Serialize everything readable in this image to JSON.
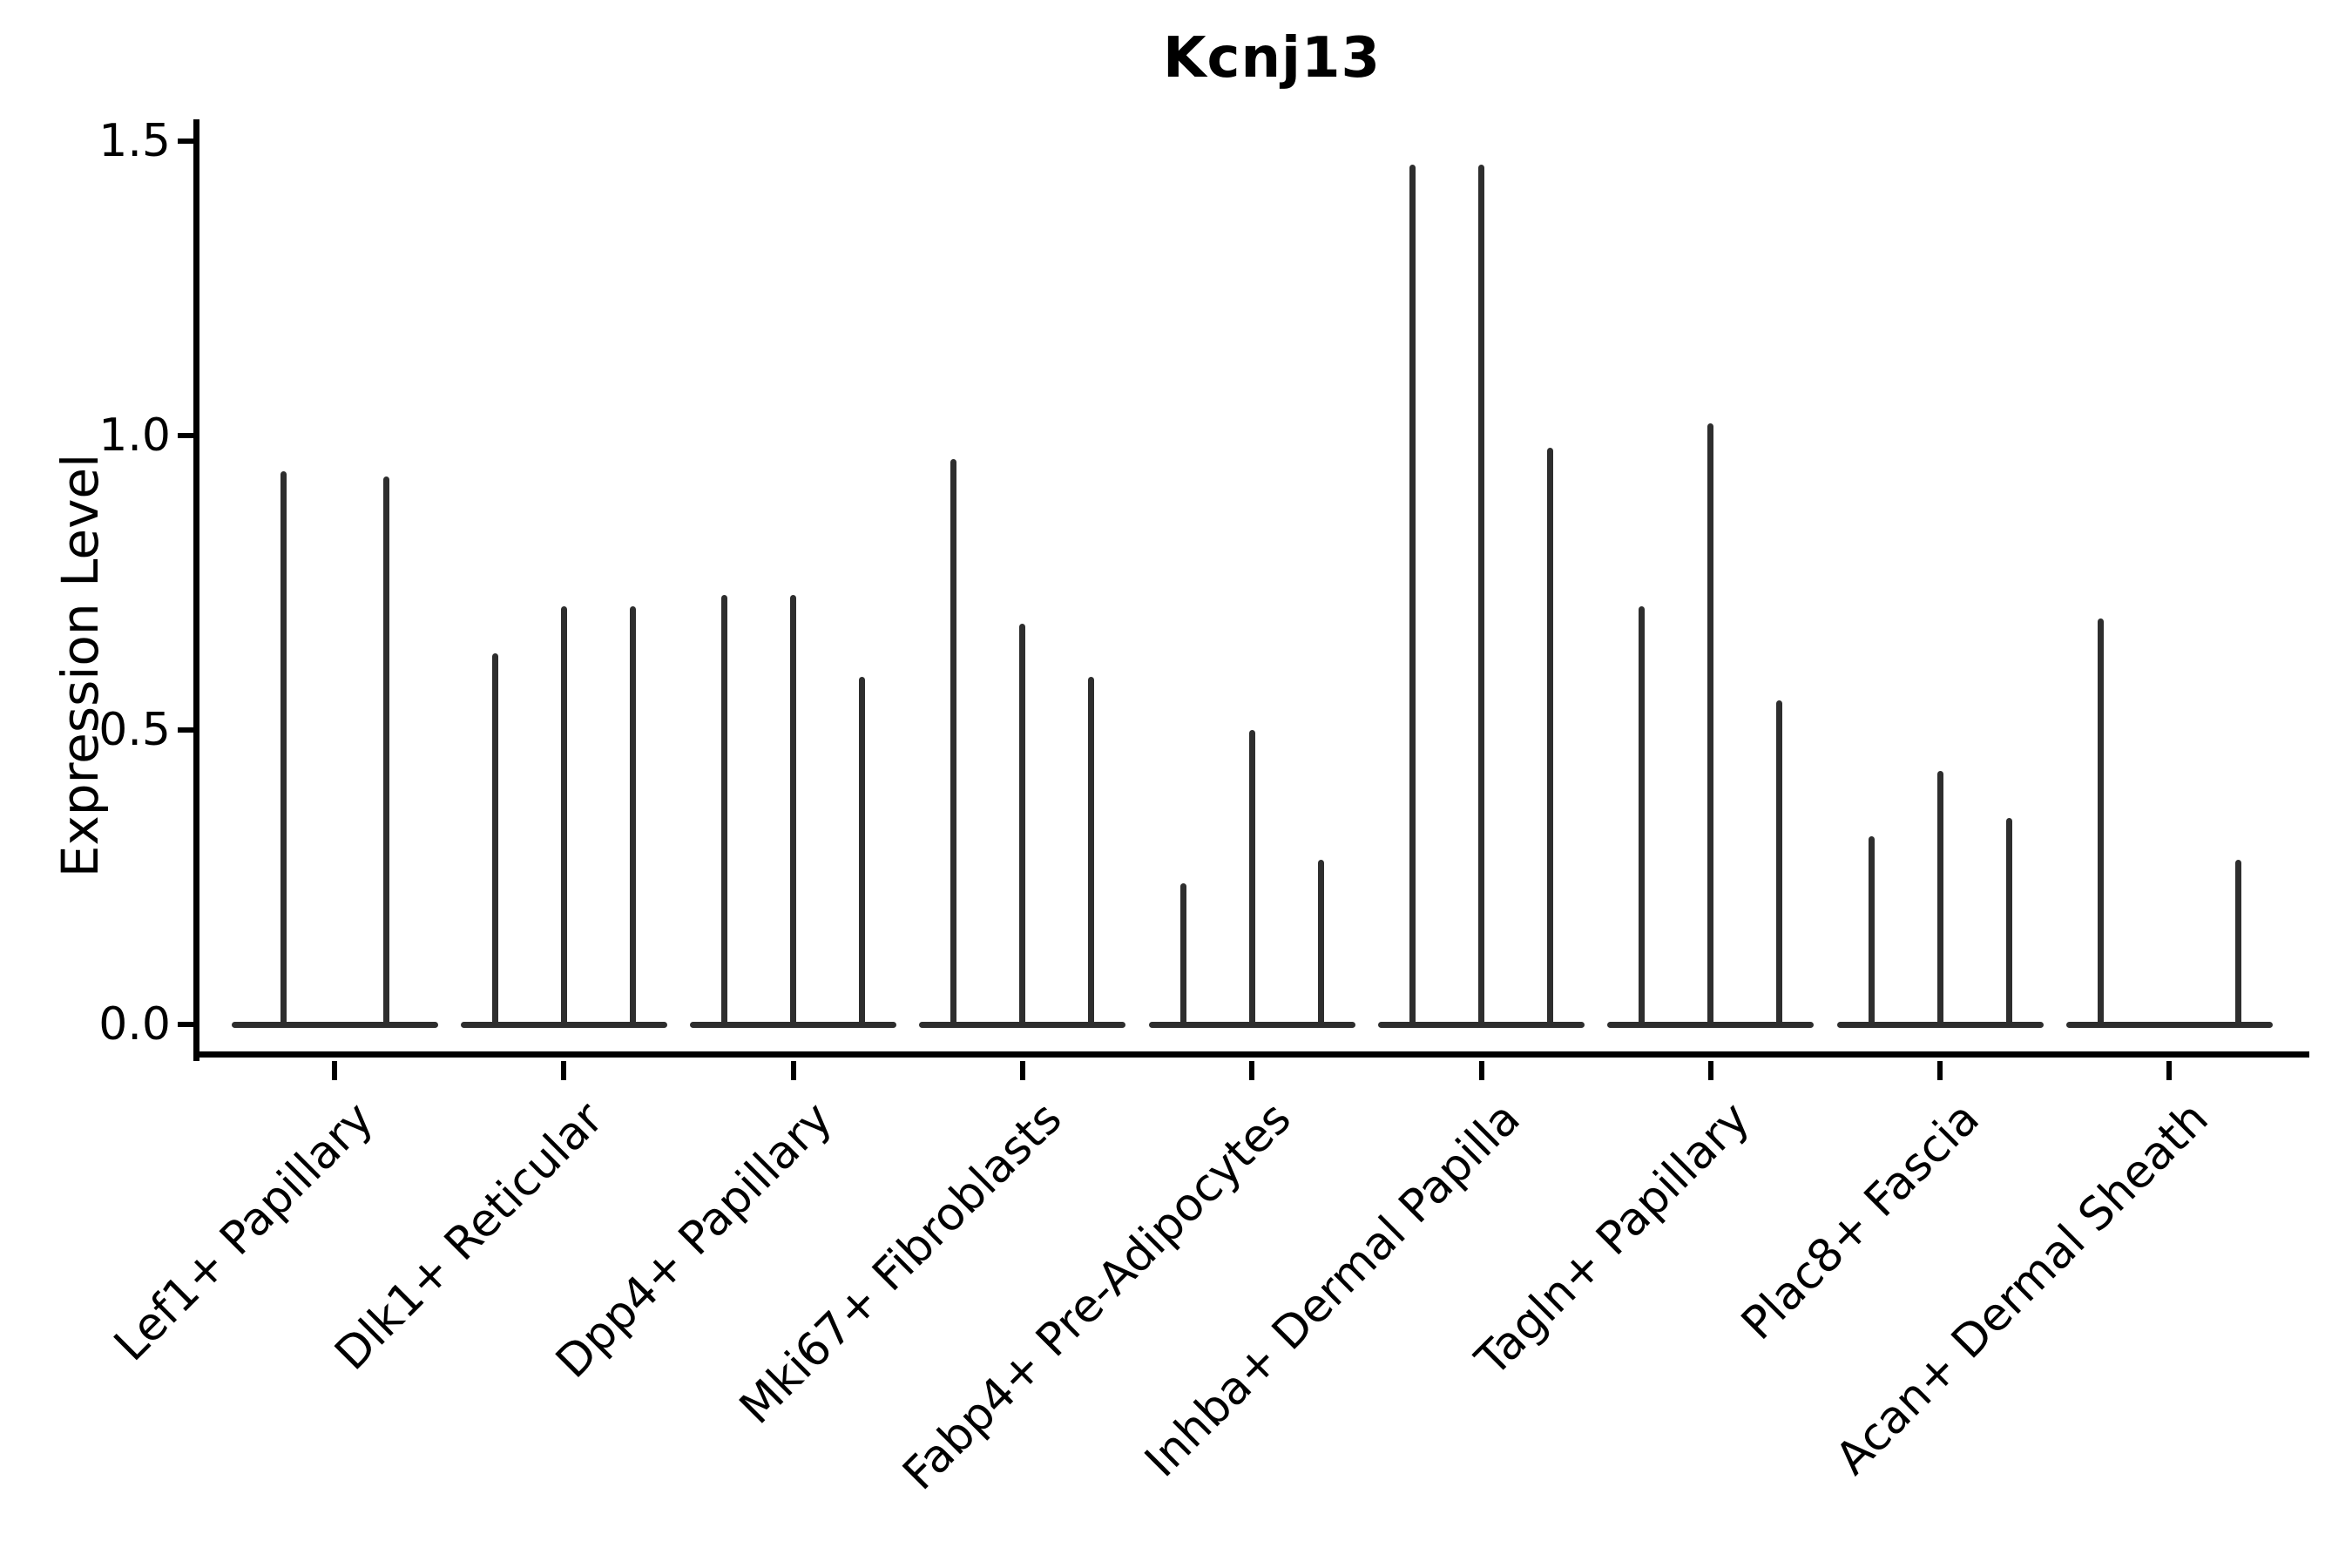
{
  "title": "Kcnj13",
  "axes": {
    "ylabel": "Expression Level",
    "y_tick_labels": [
      "0.0",
      "0.5",
      "1.0",
      "1.5"
    ],
    "y_tick_values": [
      0.0,
      0.5,
      1.0,
      1.5
    ]
  },
  "colors": {
    "violin": "#2e2e2e",
    "axis": "#000000",
    "text": "#000000",
    "background": "#ffffff"
  },
  "chart_data": {
    "type": "violin",
    "title": "Kcnj13",
    "xlabel": "",
    "ylabel": "Expression Level",
    "ylim": [
      -0.06,
      1.53
    ],
    "grid": false,
    "legend": "none",
    "categories": [
      "Lef1+ Papillary",
      "Dlk1+ Reticular",
      "Dpp4+ Papillary",
      "Mki67+ Fibroblasts",
      "Fabp4+ Pre-Adipocytes",
      "Inhba+ Dermal Papilla",
      "Tagln+ Papillary",
      "Plac8+ Fascia",
      "Acan+ Dermal Sheath"
    ],
    "groups": [
      {
        "category": "Lef1+ Papillary",
        "violin_max_expression": [
          0.94,
          0.93
        ]
      },
      {
        "category": "Dlk1+ Reticular",
        "violin_max_expression": [
          0.63,
          0.71,
          0.71
        ]
      },
      {
        "category": "Dpp4+ Papillary",
        "violin_max_expression": [
          0.73,
          0.73,
          0.59
        ]
      },
      {
        "category": "Mki67+ Fibroblasts",
        "violin_max_expression": [
          0.96,
          0.68,
          0.59
        ]
      },
      {
        "category": "Fabp4+ Pre-Adipocytes",
        "violin_max_expression": [
          0.24,
          0.5,
          0.28
        ]
      },
      {
        "category": "Inhba+ Dermal Papilla",
        "violin_max_expression": [
          1.46,
          1.46,
          0.98
        ]
      },
      {
        "category": "Tagln+ Papillary",
        "violin_max_expression": [
          0.71,
          1.02,
          0.55
        ]
      },
      {
        "category": "Plac8+ Fascia",
        "violin_max_expression": [
          0.32,
          0.43,
          0.35
        ]
      },
      {
        "category": "Acan+ Dermal Sheath",
        "violin_max_expression": [
          0.69,
          0.0,
          0.28
        ]
      }
    ],
    "notes": "Each category shows thin density spikes rising from a flat base at expression 0; zero value means a flat violin with no spike."
  }
}
